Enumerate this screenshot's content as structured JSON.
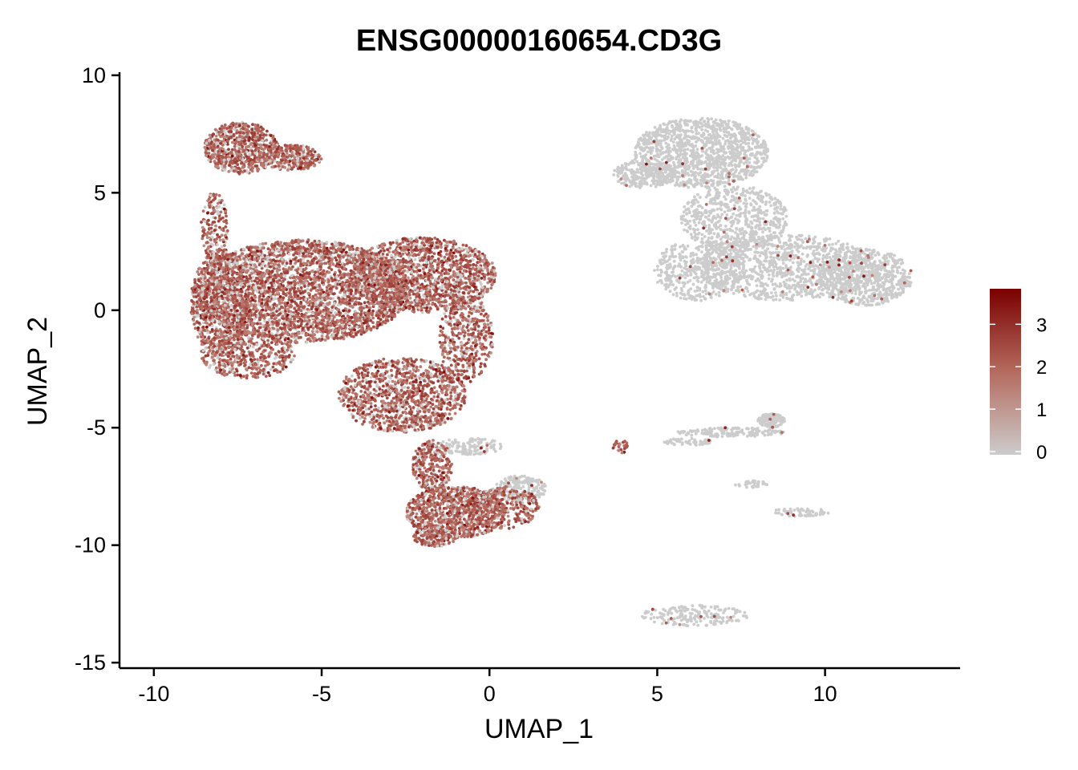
{
  "chart_data": {
    "type": "scatter",
    "title": "ENSG00000160654.CD3G",
    "xlabel": "UMAP_1",
    "ylabel": "UMAP_2",
    "xlim": [
      -11.0,
      14.0
    ],
    "ylim": [
      -15.2,
      10.2
    ],
    "x_ticks": [
      -10,
      -5,
      0,
      5,
      10
    ],
    "y_ticks": [
      -15,
      -10,
      -5,
      0,
      5,
      10
    ],
    "x_tick_labels": [
      "-10",
      "-5",
      "0",
      "5",
      "10"
    ],
    "y_tick_labels": [
      "-15",
      "-10",
      "-5",
      "0",
      "5",
      "10"
    ],
    "grid": false,
    "legend": {
      "position": "right",
      "type": "colorbar",
      "min": 0,
      "max": 3.8,
      "ticks": [
        0,
        1,
        2,
        3
      ],
      "tick_labels": [
        "0",
        "1",
        "2",
        "3"
      ],
      "color_low": "#cccccc",
      "color_mid": "#b56b5f",
      "color_high": "#7a0000"
    },
    "clusters": [
      {
        "name": "left-main",
        "expression": "high",
        "regions": [
          {
            "cx": -5.6,
            "cy": 0.8,
            "rx": 3.2,
            "ry": 2.2,
            "n": 3200
          },
          {
            "cx": -8.0,
            "cy": 0.3,
            "rx": 0.9,
            "ry": 2.3,
            "n": 700
          },
          {
            "cx": -2.0,
            "cy": 1.5,
            "rx": 2.2,
            "ry": 1.6,
            "n": 1500
          },
          {
            "cx": -7.2,
            "cy": -1.9,
            "rx": 1.4,
            "ry": 1.0,
            "n": 450
          },
          {
            "cx": -2.6,
            "cy": -3.6,
            "rx": 1.9,
            "ry": 1.6,
            "n": 1100
          },
          {
            "cx": -0.7,
            "cy": -1.2,
            "rx": 0.8,
            "ry": 1.9,
            "n": 420
          },
          {
            "cx": -1.7,
            "cy": -6.6,
            "rx": 0.6,
            "ry": 1.1,
            "n": 280
          }
        ]
      },
      {
        "name": "left-hook",
        "expression": "high",
        "regions": [
          {
            "cx": -7.4,
            "cy": 6.9,
            "rx": 1.1,
            "ry": 1.1,
            "n": 650
          },
          {
            "cx": -5.9,
            "cy": 6.5,
            "rx": 0.9,
            "ry": 0.55,
            "n": 280
          },
          {
            "cx": -8.2,
            "cy": 3.5,
            "rx": 0.4,
            "ry": 1.5,
            "n": 160
          }
        ]
      },
      {
        "name": "left-bottom",
        "expression": "high",
        "regions": [
          {
            "cx": -1.0,
            "cy": -8.6,
            "rx": 1.5,
            "ry": 1.1,
            "n": 900
          },
          {
            "cx": 0.4,
            "cy": -8.4,
            "rx": 1.1,
            "ry": 0.9,
            "n": 320
          },
          {
            "cx": -1.6,
            "cy": -9.6,
            "rx": 0.7,
            "ry": 0.45,
            "n": 180
          }
        ]
      },
      {
        "name": "left-bottom-grey",
        "expression": "low",
        "regions": [
          {
            "cx": 0.9,
            "cy": -7.6,
            "rx": 0.8,
            "ry": 0.55,
            "n": 200
          },
          {
            "cx": -0.6,
            "cy": -5.8,
            "rx": 1.0,
            "ry": 0.35,
            "n": 130
          }
        ]
      },
      {
        "name": "right-main",
        "expression": "low",
        "regions": [
          {
            "cx": 6.3,
            "cy": 6.7,
            "rx": 2.0,
            "ry": 1.5,
            "n": 1300
          },
          {
            "cx": 4.6,
            "cy": 5.8,
            "rx": 0.9,
            "ry": 0.6,
            "n": 220
          },
          {
            "cx": 7.3,
            "cy": 3.9,
            "rx": 1.6,
            "ry": 1.4,
            "n": 650
          },
          {
            "cx": 8.9,
            "cy": 1.8,
            "rx": 2.7,
            "ry": 1.4,
            "n": 1100
          },
          {
            "cx": 11.2,
            "cy": 1.4,
            "rx": 1.4,
            "ry": 1.2,
            "n": 650
          },
          {
            "cx": 6.2,
            "cy": 1.7,
            "rx": 1.3,
            "ry": 1.3,
            "n": 420
          }
        ]
      },
      {
        "name": "right-streak",
        "expression": "low",
        "regions": [
          {
            "cx": 7.2,
            "cy": -5.2,
            "rx": 1.6,
            "ry": 0.2,
            "n": 160
          },
          {
            "cx": 8.4,
            "cy": -4.7,
            "rx": 0.4,
            "ry": 0.3,
            "n": 140
          },
          {
            "cx": 5.9,
            "cy": -5.6,
            "rx": 0.8,
            "ry": 0.15,
            "n": 60
          },
          {
            "cx": 9.3,
            "cy": -8.6,
            "rx": 0.9,
            "ry": 0.18,
            "n": 60
          },
          {
            "cx": 7.8,
            "cy": -7.4,
            "rx": 0.5,
            "ry": 0.15,
            "n": 30
          }
        ]
      },
      {
        "name": "right-arc",
        "expression": "low",
        "regions": [
          {
            "cx": 6.1,
            "cy": -13.0,
            "rx": 1.6,
            "ry": 0.45,
            "n": 190
          }
        ]
      },
      {
        "name": "small-red",
        "expression": "high",
        "regions": [
          {
            "cx": 3.9,
            "cy": -5.8,
            "rx": 0.22,
            "ry": 0.3,
            "n": 30
          }
        ]
      }
    ]
  }
}
